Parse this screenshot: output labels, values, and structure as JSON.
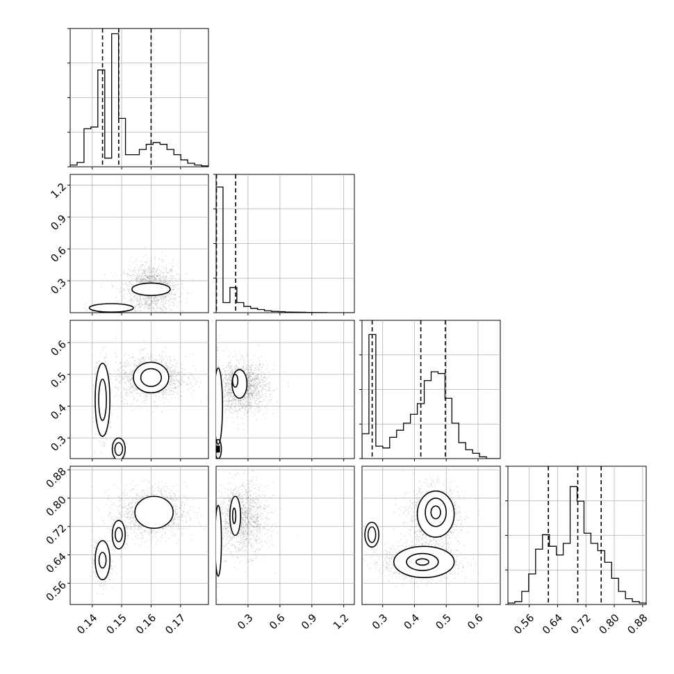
{
  "chart_data": {
    "type": "corner",
    "parameters": [
      {
        "range": [
          0.1325,
          0.1795
        ],
        "ticks": [
          0.14,
          0.15,
          0.16,
          0.17
        ],
        "tick_labels": [
          "0.14",
          "0.15",
          "0.16",
          "0.17"
        ]
      },
      {
        "range": [
          0.0,
          1.3
        ],
        "ticks": [
          0.3,
          0.6,
          0.9,
          1.2
        ],
        "tick_labels": [
          "0.3",
          "0.6",
          "0.9",
          "1.2"
        ]
      },
      {
        "range": [
          0.235,
          0.67
        ],
        "ticks": [
          0.3,
          0.4,
          0.5,
          0.6
        ],
        "tick_labels": [
          "0.3",
          "0.4",
          "0.5",
          "0.6"
        ]
      },
      {
        "range": [
          0.5,
          0.89
        ],
        "ticks": [
          0.56,
          0.64,
          0.72,
          0.8,
          0.88
        ],
        "tick_labels": [
          "0.56",
          "0.64",
          "0.72",
          "0.80",
          "0.88"
        ]
      }
    ],
    "quantiles": [
      [
        0.1435,
        0.149,
        0.16
      ],
      [
        0.0035,
        0.184
      ],
      [
        0.267,
        0.42,
        0.497
      ],
      [
        0.614,
        0.697,
        0.763
      ]
    ],
    "histograms": [
      {
        "param": 0,
        "counts": [
          0.02,
          0.05,
          0.44,
          0.46,
          1.12,
          0.1,
          1.54,
          0.56,
          0.14,
          0.14,
          0.2,
          0.26,
          0.28,
          0.26,
          0.2,
          0.14,
          0.08,
          0.04,
          0.02,
          0.01
        ],
        "max": 1.6
      },
      {
        "param": 1,
        "counts": [
          1.0,
          0.08,
          0.2,
          0.08,
          0.05,
          0.035,
          0.025,
          0.015,
          0.01,
          0.008,
          0.005,
          0.004,
          0.003,
          0.002,
          0.001,
          0.001,
          0,
          0,
          0,
          0
        ],
        "max": 1.1
      },
      {
        "param": 2,
        "counts": [
          0.14,
          0.7,
          0.07,
          0.06,
          0.12,
          0.16,
          0.2,
          0.25,
          0.31,
          0.44,
          0.49,
          0.48,
          0.34,
          0.2,
          0.09,
          0.05,
          0.03,
          0.01,
          0.0,
          0.0
        ],
        "max": 0.78
      },
      {
        "param": 3,
        "counts": [
          0.01,
          0.02,
          0.09,
          0.21,
          0.38,
          0.48,
          0.4,
          0.34,
          0.42,
          0.81,
          0.71,
          0.49,
          0.42,
          0.37,
          0.29,
          0.18,
          0.09,
          0.04,
          0.02,
          0.01
        ],
        "max": 0.95
      }
    ],
    "blobs": [
      {
        "panel": [
          1,
          0
        ],
        "x": 0.16,
        "y": 0.22,
        "sx": 0.0045,
        "sy": 0.12,
        "n": 1500,
        "contours": [
          {
            "x": 0.16,
            "y": 0.22,
            "rx": 0.0065,
            "ry": 0.058
          }
        ]
      },
      {
        "panel": [
          1,
          0
        ],
        "x": 0.1465,
        "y": 0.03,
        "sx": 0.0035,
        "sy": 0.03,
        "n": 200,
        "contours": [
          {
            "x": 0.1465,
            "y": 0.045,
            "rx": 0.0075,
            "ry": 0.04
          }
        ]
      },
      {
        "panel": [
          2,
          0
        ],
        "x": 0.16,
        "y": 0.49,
        "sx": 0.006,
        "sy": 0.035,
        "n": 1400,
        "contours": [
          {
            "x": 0.16,
            "y": 0.49,
            "rx": 0.006,
            "ry": 0.048
          },
          {
            "x": 0.16,
            "y": 0.49,
            "rx": 0.0035,
            "ry": 0.028
          }
        ]
      },
      {
        "panel": [
          2,
          0
        ],
        "x": 0.1435,
        "y": 0.42,
        "sx": 0.0012,
        "sy": 0.06,
        "n": 600,
        "contours": [
          {
            "x": 0.1435,
            "y": 0.42,
            "rx": 0.0025,
            "ry": 0.115
          },
          {
            "x": 0.1435,
            "y": 0.42,
            "rx": 0.0013,
            "ry": 0.065
          }
        ]
      },
      {
        "panel": [
          2,
          0
        ],
        "x": 0.149,
        "y": 0.265,
        "sx": 0.001,
        "sy": 0.015,
        "n": 200,
        "contours": [
          {
            "x": 0.149,
            "y": 0.265,
            "rx": 0.0022,
            "ry": 0.035
          },
          {
            "x": 0.149,
            "y": 0.265,
            "rx": 0.0013,
            "ry": 0.02
          }
        ]
      },
      {
        "panel": [
          2,
          1
        ],
        "x": 0.25,
        "y": 0.46,
        "sx": 0.12,
        "sy": 0.04,
        "n": 1600,
        "contours": [
          {
            "x": 0.22,
            "y": 0.47,
            "rx": 0.07,
            "ry": 0.045
          },
          {
            "x": 0.18,
            "y": 0.48,
            "rx": 0.025,
            "ry": 0.02
          }
        ]
      },
      {
        "panel": [
          2,
          1
        ],
        "x": 0.01,
        "y": 0.35,
        "sx": 0.01,
        "sy": 0.1,
        "n": 300,
        "contours": [
          {
            "x": 0.02,
            "y": 0.4,
            "rx": 0.04,
            "ry": 0.12
          },
          {
            "x": 0.02,
            "y": 0.265,
            "rx": 0.03,
            "ry": 0.03
          }
        ]
      },
      {
        "panel": [
          3,
          0
        ],
        "x": 0.16,
        "y": 0.76,
        "sx": 0.006,
        "sy": 0.035,
        "n": 1400,
        "contours": [
          {
            "x": 0.161,
            "y": 0.76,
            "rx": 0.0065,
            "ry": 0.045
          }
        ]
      },
      {
        "panel": [
          3,
          0
        ],
        "x": 0.1435,
        "y": 0.62,
        "sx": 0.0015,
        "sy": 0.03,
        "n": 500,
        "contours": [
          {
            "x": 0.1435,
            "y": 0.625,
            "rx": 0.0025,
            "ry": 0.055
          },
          {
            "x": 0.1435,
            "y": 0.625,
            "rx": 0.0012,
            "ry": 0.022
          }
        ]
      },
      {
        "panel": [
          3,
          0
        ],
        "x": 0.149,
        "y": 0.697,
        "sx": 0.0012,
        "sy": 0.02,
        "n": 300,
        "contours": [
          {
            "x": 0.149,
            "y": 0.697,
            "rx": 0.0022,
            "ry": 0.04
          },
          {
            "x": 0.149,
            "y": 0.697,
            "rx": 0.0012,
            "ry": 0.02
          }
        ]
      },
      {
        "panel": [
          3,
          1
        ],
        "x": 0.25,
        "y": 0.74,
        "sx": 0.12,
        "sy": 0.05,
        "n": 1400,
        "contours": [
          {
            "x": 0.18,
            "y": 0.75,
            "rx": 0.05,
            "ry": 0.055
          },
          {
            "x": 0.17,
            "y": 0.75,
            "rx": 0.015,
            "ry": 0.022
          }
        ]
      },
      {
        "panel": [
          3,
          1
        ],
        "x": 0.01,
        "y": 0.68,
        "sx": 0.01,
        "sy": 0.05,
        "n": 300,
        "contours": [
          {
            "x": 0.02,
            "y": 0.68,
            "rx": 0.03,
            "ry": 0.1
          }
        ]
      },
      {
        "panel": [
          3,
          2
        ],
        "x": 0.46,
        "y": 0.75,
        "sx": 0.04,
        "sy": 0.04,
        "n": 1300,
        "contours": [
          {
            "x": 0.467,
            "y": 0.755,
            "rx": 0.058,
            "ry": 0.065
          },
          {
            "x": 0.467,
            "y": 0.76,
            "rx": 0.033,
            "ry": 0.04
          },
          {
            "x": 0.467,
            "y": 0.76,
            "rx": 0.015,
            "ry": 0.018
          }
        ]
      },
      {
        "panel": [
          3,
          2
        ],
        "x": 0.42,
        "y": 0.62,
        "sx": 0.06,
        "sy": 0.025,
        "n": 1300,
        "contours": [
          {
            "x": 0.43,
            "y": 0.62,
            "rx": 0.095,
            "ry": 0.044
          },
          {
            "x": 0.425,
            "y": 0.62,
            "rx": 0.05,
            "ry": 0.024
          },
          {
            "x": 0.425,
            "y": 0.62,
            "rx": 0.02,
            "ry": 0.009
          }
        ]
      },
      {
        "panel": [
          3,
          2
        ],
        "x": 0.267,
        "y": 0.697,
        "sx": 0.006,
        "sy": 0.012,
        "n": 200,
        "contours": [
          {
            "x": 0.266,
            "y": 0.697,
            "rx": 0.022,
            "ry": 0.035
          },
          {
            "x": 0.266,
            "y": 0.697,
            "rx": 0.012,
            "ry": 0.022
          }
        ]
      }
    ],
    "modes": [
      {
        "panel": [
          1,
          0
        ],
        "x": 0.1435,
        "y": 0.02
      },
      {
        "panel": [
          1,
          0
        ],
        "x": 0.148,
        "y": 0.02
      },
      {
        "panel": [
          2,
          0
        ],
        "x": 0.148,
        "y": 0.265
      },
      {
        "panel": [
          2,
          1
        ],
        "x": 0.004,
        "y": 0.265
      },
      {
        "panel": [
          3,
          0
        ],
        "x": 0.148,
        "y": 0.697
      },
      {
        "panel": [
          3,
          1
        ],
        "x": 0.004,
        "y": 0.697
      },
      {
        "panel": [
          3,
          2
        ],
        "x": 0.267,
        "y": 0.697
      }
    ]
  }
}
